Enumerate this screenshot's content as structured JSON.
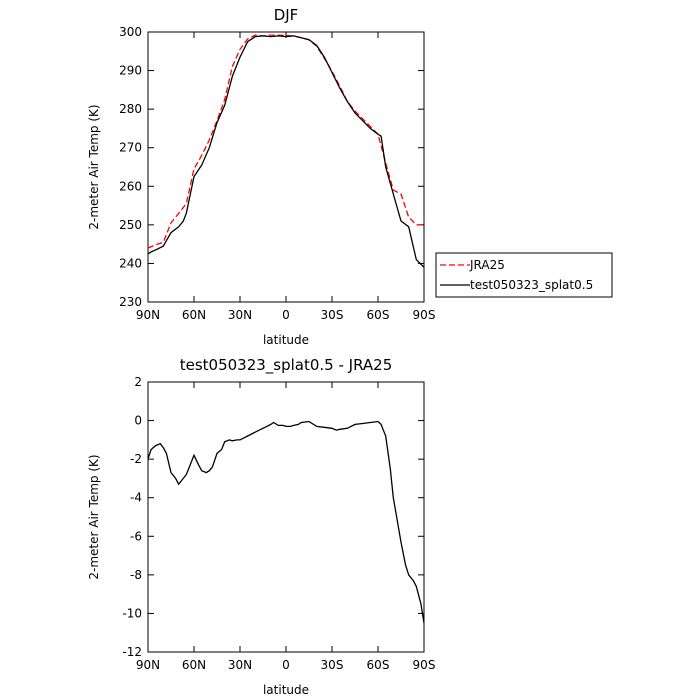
{
  "chart_data": [
    {
      "type": "line",
      "title": "DJF",
      "xlabel": "latitude",
      "ylabel": "2-meter Air Temp (K)",
      "xlim": [
        90,
        -90
      ],
      "ylim": [
        230,
        300
      ],
      "x_tick_values": [
        90,
        60,
        30,
        0,
        -30,
        -60,
        -90
      ],
      "x_tick_labels": [
        "90N",
        "60N",
        "30N",
        "0",
        "30S",
        "60S",
        "90S"
      ],
      "y_ticks": [
        230,
        240,
        250,
        260,
        270,
        280,
        290,
        300
      ],
      "legend_position": "right",
      "series": [
        {
          "name": "JRA25",
          "color": "#ff0000",
          "style": "dashed",
          "x": [
            90,
            85,
            80,
            75,
            70,
            65,
            60,
            55,
            50,
            45,
            40,
            35,
            30,
            25,
            20,
            15,
            10,
            5,
            0,
            -5,
            -10,
            -15,
            -20,
            -25,
            -30,
            -35,
            -40,
            -45,
            -50,
            -55,
            -60,
            -65,
            -70,
            -75,
            -80,
            -85,
            -90
          ],
          "y": [
            244,
            244.8,
            245.5,
            250.5,
            253,
            255.5,
            264.5,
            268,
            272,
            277,
            282.5,
            291,
            295.5,
            298.2,
            299.2,
            299,
            299.2,
            299.2,
            299.1,
            299,
            298.5,
            298,
            296.3,
            293.2,
            289.8,
            286,
            282,
            279.5,
            277.5,
            275.5,
            273.5,
            266,
            259,
            258,
            252,
            250,
            250
          ]
        },
        {
          "name": "test050323_splat0.5",
          "color": "#000000",
          "style": "solid",
          "x": [
            90,
            88,
            85,
            80,
            75,
            70,
            67,
            65,
            60,
            55,
            50,
            45,
            40,
            35,
            30,
            25,
            20,
            15,
            10,
            5,
            0,
            -5,
            -10,
            -15,
            -20,
            -25,
            -30,
            -35,
            -40,
            -45,
            -50,
            -55,
            -60,
            -62,
            -65,
            -70,
            -75,
            -80,
            -85,
            -90
          ],
          "y": [
            242.5,
            243,
            243.5,
            244.5,
            248,
            249.5,
            251,
            253,
            262.5,
            265.5,
            270,
            276.5,
            281,
            288.5,
            293.5,
            297.5,
            298.8,
            299,
            298.8,
            299,
            298.8,
            299,
            298.5,
            298,
            296.5,
            293.5,
            289.5,
            285.5,
            282,
            279,
            277,
            275,
            273.5,
            273,
            265,
            258,
            251,
            249.5,
            241,
            239
          ]
        }
      ]
    },
    {
      "type": "line",
      "title": "test050323_splat0.5 - JRA25",
      "xlabel": "latitude",
      "ylabel": "2-meter Air Temp (K)",
      "xlim": [
        90,
        -90
      ],
      "ylim": [
        -12,
        2
      ],
      "x_tick_values": [
        90,
        60,
        30,
        0,
        -30,
        -60,
        -90
      ],
      "x_tick_labels": [
        "90N",
        "60N",
        "30N",
        "0",
        "30S",
        "60S",
        "90S"
      ],
      "y_ticks": [
        -12,
        -10,
        -8,
        -6,
        -4,
        -2,
        0,
        2
      ],
      "series": [
        {
          "color": "#000000",
          "style": "solid",
          "x": [
            90,
            88,
            85,
            82,
            80,
            78,
            75,
            72,
            70,
            68,
            65,
            63,
            60,
            57,
            55,
            52,
            50,
            48,
            45,
            42,
            40,
            37,
            35,
            32,
            30,
            25,
            20,
            15,
            10,
            8,
            5,
            2,
            0,
            -3,
            -5,
            -8,
            -10,
            -15,
            -20,
            -25,
            -30,
            -33,
            -35,
            -40,
            -45,
            -50,
            -55,
            -60,
            -62,
            -63,
            -65,
            -68,
            -70,
            -75,
            -78,
            -80,
            -83,
            -85,
            -88,
            -90
          ],
          "y": [
            -2,
            -1.5,
            -1.3,
            -1.2,
            -1.4,
            -1.7,
            -2.7,
            -3,
            -3.3,
            -3.1,
            -2.8,
            -2.4,
            -1.8,
            -2.3,
            -2.6,
            -2.7,
            -2.6,
            -2.4,
            -1.7,
            -1.5,
            -1.1,
            -1,
            -1.05,
            -1,
            -1,
            -0.8,
            -0.6,
            -0.4,
            -0.2,
            -0.1,
            -0.25,
            -0.25,
            -0.3,
            -0.3,
            -0.25,
            -0.2,
            -0.1,
            -0.05,
            -0.3,
            -0.35,
            -0.4,
            -0.5,
            -0.45,
            -0.4,
            -0.2,
            -0.15,
            -0.1,
            -0.05,
            -0.2,
            -0.4,
            -0.8,
            -2.5,
            -4,
            -6.3,
            -7.5,
            -8,
            -8.3,
            -8.6,
            -9.5,
            -10.5
          ]
        }
      ]
    }
  ]
}
